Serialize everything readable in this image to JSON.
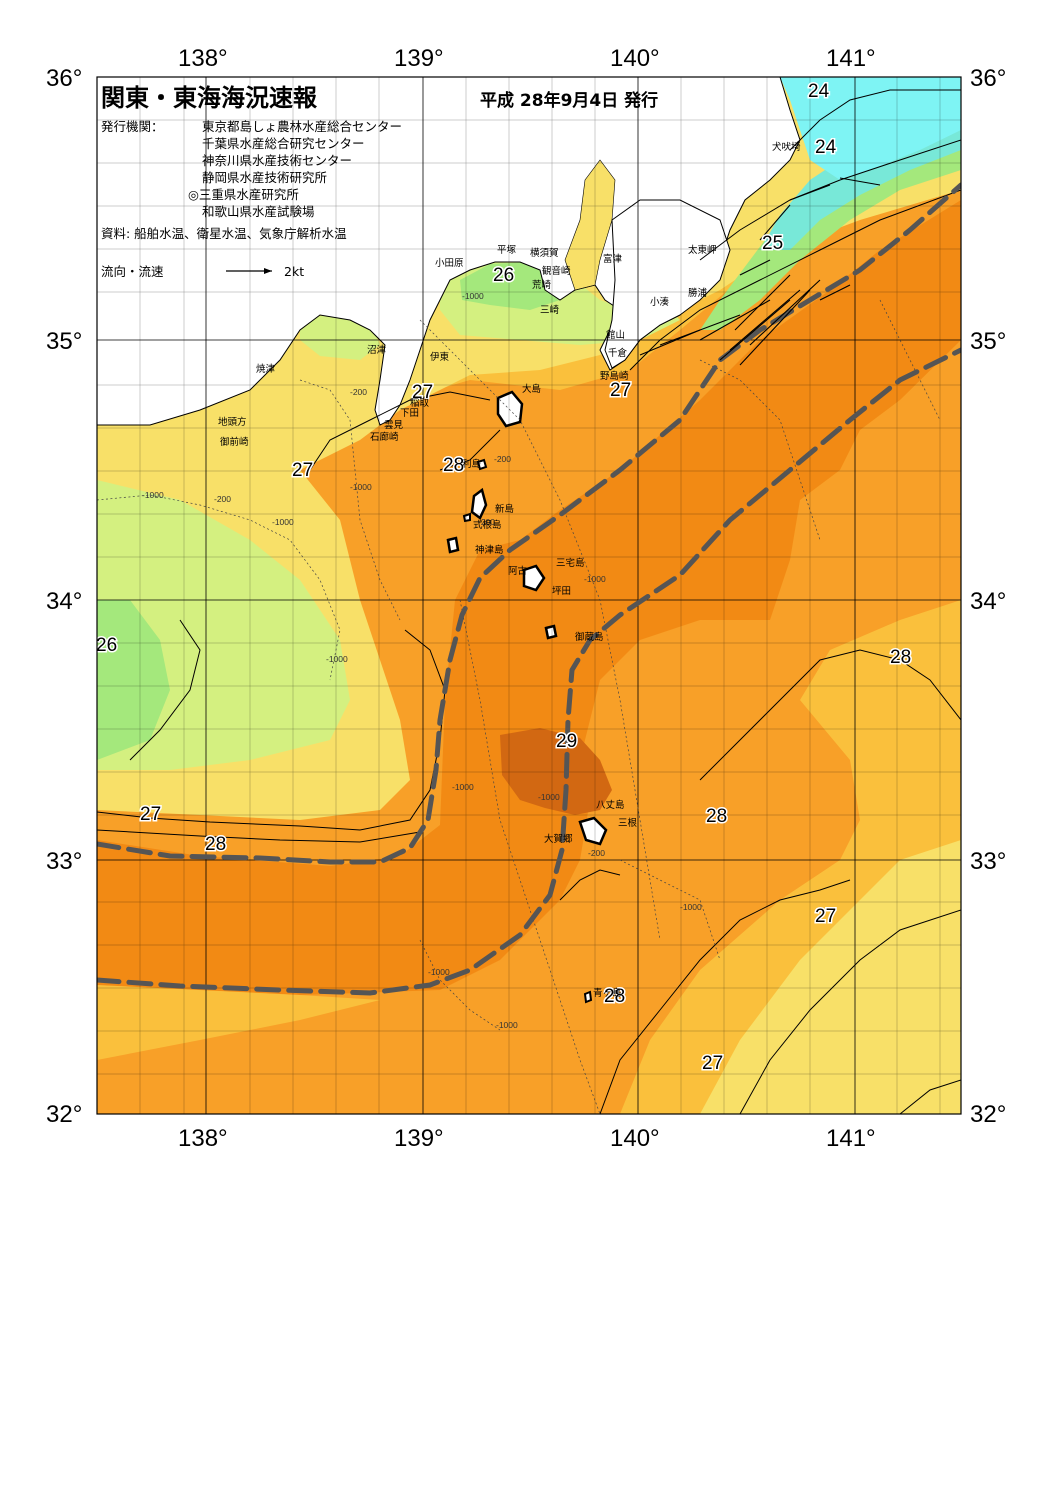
{
  "title": "関東・東海海況速報",
  "issue_date": "平成 28年9月4日 発行",
  "issuers_label": "発行機関：",
  "issuers": [
    "東京都島しょ農林水産総合センター",
    "千葉県水産総合研究センター",
    "神奈川県水産技術センター",
    "静岡県水産技術研究所",
    "◎三重県水産研究所",
    "和歌山県水産試験場"
  ],
  "sources": "資料: 船舶水温、衛星水温、気象庁解析水温",
  "flow_legend": {
    "label": "流向・流速",
    "unit": "2kt"
  },
  "lon_labels": [
    "138°",
    "139°",
    "140°",
    "141°"
  ],
  "lat_labels": [
    "36°",
    "35°",
    "34°",
    "33°",
    "32°"
  ],
  "colors": {
    "t23": "#7ef4f4",
    "t24": "#78e8d8",
    "t25": "#a4e87c",
    "t26": "#d4f080",
    "t27": "#f8e068",
    "t27_5": "#fac03c",
    "t28": "#f8a028",
    "t28_5": "#f28a14",
    "t29": "#d26812",
    "land": "#ffffff",
    "kuroshio_axis": "#555555"
  },
  "temperature_labels": [
    "24",
    "24",
    "25",
    "26",
    "27",
    "27",
    "28",
    "27",
    "26",
    "28",
    "29",
    "27",
    "28",
    "28",
    "27",
    "28",
    "27"
  ],
  "depth_labels": [
    "-1000",
    "-200",
    "-1000",
    "-200",
    "-1000",
    "-1000",
    "-200",
    "-1000",
    "-1000",
    "-1000",
    "-200",
    "-1000",
    "-1000",
    "-1000",
    "-200",
    "-1000"
  ],
  "place_names": [
    "犬吠埼",
    "太東岬",
    "勝浦",
    "小湊",
    "館山",
    "千倉",
    "野島崎",
    "富津",
    "横須賀",
    "観音崎",
    "平塚",
    "小田原",
    "荒崎",
    "三崎",
    "大島",
    "沼津",
    "伊東",
    "焼津",
    "稲取",
    "下田",
    "雲見",
    "石廊崎",
    "地頭方",
    "御前崎",
    "利島",
    "新島",
    "式根島",
    "神津島",
    "三宅島",
    "阿古",
    "坪田",
    "御蔵島",
    "八丈島",
    "三根",
    "大賀郷",
    "青ヶ島"
  ]
}
